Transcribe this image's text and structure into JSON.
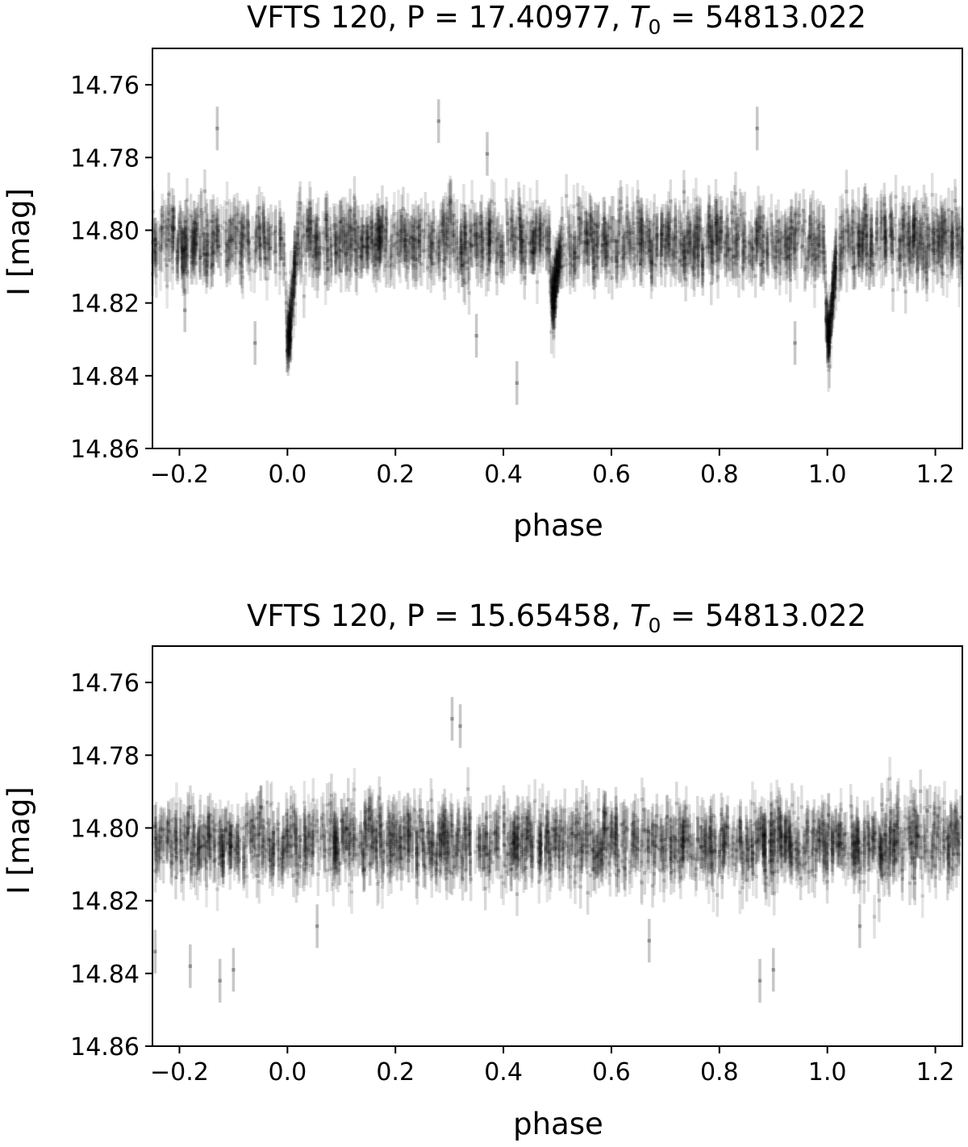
{
  "chart_data": [
    {
      "type": "scatter",
      "title_main": "VFTS 120, P = 17.40977, ",
      "title_t0_symbol": "T",
      "title_t0_sub": "0",
      "title_t0_value": " = 54813.022",
      "xlabel": "phase",
      "ylabel": "I [mag]",
      "xlim": [
        -0.25,
        1.25
      ],
      "ylim": [
        14.86,
        14.75
      ],
      "y_inverted": true,
      "xticks": [
        "−0.2",
        "0.0",
        "0.2",
        "0.4",
        "0.6",
        "0.8",
        "1.0",
        "1.2"
      ],
      "xtick_values": [
        -0.2,
        0.0,
        0.2,
        0.4,
        0.6,
        0.8,
        1.0,
        1.2
      ],
      "yticks": [
        "14.76",
        "14.78",
        "14.80",
        "14.82",
        "14.84",
        "14.86"
      ],
      "ytick_values": [
        14.76,
        14.78,
        14.8,
        14.82,
        14.84,
        14.86
      ],
      "marker_color": "#000000",
      "baseline_mag": 14.803,
      "scatter_mag": 0.0045,
      "typical_error": 0.006,
      "eclipses": [
        {
          "phase": 0.0,
          "depth": 0.03,
          "width": 0.012
        },
        {
          "phase": 0.49,
          "depth": 0.018,
          "width": 0.012
        },
        {
          "phase": 1.0,
          "depth": 0.03,
          "width": 0.012
        }
      ],
      "outliers": [
        {
          "x": -0.13,
          "y": 14.772
        },
        {
          "x": 0.28,
          "y": 14.77
        },
        {
          "x": 0.37,
          "y": 14.779
        },
        {
          "x": 0.87,
          "y": 14.772
        },
        {
          "x": 0.425,
          "y": 14.842
        },
        {
          "x": -0.06,
          "y": 14.831
        },
        {
          "x": 0.35,
          "y": 14.829
        },
        {
          "x": 0.94,
          "y": 14.831
        },
        {
          "x": -0.19,
          "y": 14.822
        }
      ]
    },
    {
      "type": "scatter",
      "title_main": "VFTS 120, P = 15.65458, ",
      "title_t0_symbol": "T",
      "title_t0_sub": "0",
      "title_t0_value": " = 54813.022",
      "xlabel": "phase",
      "ylabel": "I [mag]",
      "xlim": [
        -0.25,
        1.25
      ],
      "ylim": [
        14.86,
        14.75
      ],
      "y_inverted": true,
      "xticks": [
        "−0.2",
        "0.0",
        "0.2",
        "0.4",
        "0.6",
        "0.8",
        "1.0",
        "1.2"
      ],
      "xtick_values": [
        -0.2,
        0.0,
        0.2,
        0.4,
        0.6,
        0.8,
        1.0,
        1.2
      ],
      "yticks": [
        "14.76",
        "14.78",
        "14.80",
        "14.82",
        "14.84",
        "14.86"
      ],
      "ytick_values": [
        14.76,
        14.78,
        14.8,
        14.82,
        14.84,
        14.86
      ],
      "marker_color": "#000000",
      "baseline_mag": 14.804,
      "scatter_mag": 0.0048,
      "typical_error": 0.006,
      "eclipses": [],
      "outliers": [
        {
          "x": 0.305,
          "y": 14.77
        },
        {
          "x": 0.32,
          "y": 14.772
        },
        {
          "x": -0.125,
          "y": 14.842
        },
        {
          "x": -0.1,
          "y": 14.839
        },
        {
          "x": 0.875,
          "y": 14.842
        },
        {
          "x": 0.9,
          "y": 14.839
        },
        {
          "x": -0.245,
          "y": 14.834
        },
        {
          "x": -0.18,
          "y": 14.838
        },
        {
          "x": 0.67,
          "y": 14.831
        },
        {
          "x": 0.055,
          "y": 14.827
        },
        {
          "x": 1.06,
          "y": 14.827
        }
      ]
    }
  ]
}
